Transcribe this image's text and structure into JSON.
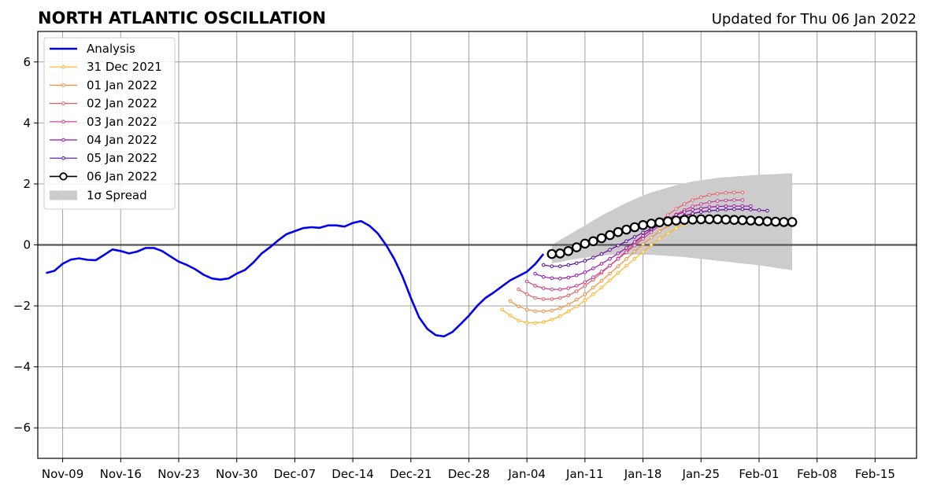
{
  "chart_data": {
    "type": "line",
    "title": "NORTH ATLANTIC OSCILLATION",
    "subtitle": "Updated for Thu 06 Jan 2022",
    "xlabel": "",
    "ylabel": "",
    "x_range": [
      "2021-11-06",
      "2022-02-20"
    ],
    "ylim": [
      -7,
      7
    ],
    "yticks": [
      -6,
      -4,
      -2,
      0,
      2,
      4,
      6
    ],
    "yticks_display": [
      "−6",
      "−4",
      "−2",
      "0",
      "2",
      "4",
      "6"
    ],
    "xticks": [
      {
        "date": "2021-11-09",
        "label": "Nov-09"
      },
      {
        "date": "2021-11-16",
        "label": "Nov-16"
      },
      {
        "date": "2021-11-23",
        "label": "Nov-23"
      },
      {
        "date": "2021-11-30",
        "label": "Nov-30"
      },
      {
        "date": "2021-12-07",
        "label": "Dec-07"
      },
      {
        "date": "2021-12-14",
        "label": "Dec-14"
      },
      {
        "date": "2021-12-21",
        "label": "Dec-21"
      },
      {
        "date": "2021-12-28",
        "label": "Dec-28"
      },
      {
        "date": "2022-01-04",
        "label": "Jan-04"
      },
      {
        "date": "2022-01-11",
        "label": "Jan-11"
      },
      {
        "date": "2022-01-18",
        "label": "Jan-18"
      },
      {
        "date": "2022-01-25",
        "label": "Jan-25"
      },
      {
        "date": "2022-02-01",
        "label": "Feb-01"
      },
      {
        "date": "2022-02-08",
        "label": "Feb-08"
      },
      {
        "date": "2022-02-15",
        "label": "Feb-15"
      }
    ],
    "grid": true,
    "zero_line": true,
    "legend_position": "top-left",
    "analysis": {
      "name": "Analysis",
      "color": "#0000ee",
      "start_date": "2021-11-07",
      "values": [
        -0.92,
        -0.85,
        -0.62,
        -0.48,
        -0.44,
        -0.49,
        -0.5,
        -0.33,
        -0.15,
        -0.2,
        -0.28,
        -0.22,
        -0.1,
        -0.1,
        -0.2,
        -0.38,
        -0.55,
        -0.66,
        -0.8,
        -0.98,
        -1.1,
        -1.14,
        -1.1,
        -0.94,
        -0.82,
        -0.58,
        -0.28,
        -0.08,
        0.15,
        0.35,
        0.45,
        0.55,
        0.58,
        0.56,
        0.64,
        0.64,
        0.6,
        0.72,
        0.78,
        0.63,
        0.38,
        0.0,
        -0.46,
        -1.04,
        -1.74,
        -2.38,
        -2.76,
        -2.96,
        -3.0,
        -2.86,
        -2.6,
        -2.32,
        -2.0,
        -1.74,
        -1.56,
        -1.36,
        -1.16,
        -1.02,
        -0.88,
        -0.63,
        -0.3
      ]
    },
    "forecasts": [
      {
        "name": "31 Dec 2021",
        "color": "#ffb41e",
        "start_date": "2022-01-01",
        "values": [
          -2.12,
          -2.32,
          -2.48,
          -2.55,
          -2.56,
          -2.53,
          -2.45,
          -2.34,
          -2.18,
          -2.02,
          -1.82,
          -1.62,
          -1.4,
          -1.16,
          -0.92,
          -0.68,
          -0.46,
          -0.22,
          0.0,
          0.2,
          0.38,
          0.55,
          0.7,
          0.82
        ]
      },
      {
        "name": "01 Jan 2022",
        "color": "#f08c3c",
        "start_date": "2022-01-02",
        "values": [
          -1.84,
          -2.02,
          -2.12,
          -2.17,
          -2.18,
          -2.15,
          -2.08,
          -1.96,
          -1.8,
          -1.62,
          -1.4,
          -1.18,
          -0.94,
          -0.7,
          -0.46,
          -0.22,
          0.02,
          0.24,
          0.44,
          0.62,
          0.78,
          0.92,
          1.02,
          1.1
        ]
      },
      {
        "name": "02 Jan 2022",
        "color": "#e65a64",
        "start_date": "2022-01-03",
        "values": [
          -1.46,
          -1.62,
          -1.74,
          -1.78,
          -1.78,
          -1.74,
          -1.66,
          -1.52,
          -1.34,
          -1.14,
          -0.92,
          -0.68,
          -0.44,
          -0.2,
          0.04,
          0.28,
          0.52,
          0.76,
          0.98,
          1.18,
          1.34,
          1.47,
          1.56,
          1.64,
          1.68,
          1.71,
          1.72,
          1.72
        ]
      },
      {
        "name": "03 Jan 2022",
        "color": "#c83c8c",
        "start_date": "2022-01-04",
        "values": [
          -1.2,
          -1.34,
          -1.42,
          -1.46,
          -1.46,
          -1.42,
          -1.34,
          -1.22,
          -1.06,
          -0.88,
          -0.68,
          -0.46,
          -0.24,
          -0.02,
          0.2,
          0.42,
          0.64,
          0.84,
          1.0,
          1.14,
          1.26,
          1.34,
          1.4,
          1.44,
          1.46,
          1.47,
          1.47
        ]
      },
      {
        "name": "04 Jan 2022",
        "color": "#9614aa",
        "start_date": "2022-01-05",
        "values": [
          -0.95,
          -1.05,
          -1.09,
          -1.1,
          -1.07,
          -1.0,
          -0.9,
          -0.77,
          -0.62,
          -0.46,
          -0.28,
          -0.1,
          0.1,
          0.3,
          0.5,
          0.68,
          0.84,
          0.98,
          1.08,
          1.15,
          1.2,
          1.24,
          1.26,
          1.27,
          1.27,
          1.27,
          1.27
        ]
      },
      {
        "name": "05 Jan 2022",
        "color": "#5a0aa0",
        "start_date": "2022-01-06",
        "values": [
          -0.66,
          -0.7,
          -0.7,
          -0.66,
          -0.6,
          -0.52,
          -0.42,
          -0.3,
          -0.16,
          -0.02,
          0.12,
          0.26,
          0.4,
          0.54,
          0.66,
          0.78,
          0.88,
          0.96,
          1.03,
          1.08,
          1.12,
          1.14,
          1.16,
          1.17,
          1.17,
          1.16,
          1.14,
          1.12
        ]
      },
      {
        "name": "06 Jan 2022",
        "color": "#000000",
        "start_date": "2022-01-07",
        "values": [
          -0.3,
          -0.28,
          -0.2,
          -0.08,
          0.04,
          0.12,
          0.22,
          0.32,
          0.42,
          0.5,
          0.58,
          0.65,
          0.7,
          0.74,
          0.77,
          0.8,
          0.82,
          0.83,
          0.84,
          0.84,
          0.84,
          0.83,
          0.82,
          0.81,
          0.8,
          0.78,
          0.77,
          0.76,
          0.75,
          0.75
        ]
      }
    ],
    "spread": {
      "name": "1σ Spread",
      "color": "#cccccc",
      "start_date": "2022-01-07",
      "upper": [
        0.0,
        0.16,
        0.32,
        0.48,
        0.64,
        0.8,
        0.96,
        1.1,
        1.24,
        1.38,
        1.5,
        1.62,
        1.72,
        1.8,
        1.88,
        1.96,
        2.02,
        2.08,
        2.12,
        2.16,
        2.2,
        2.22,
        2.24,
        2.26,
        2.28,
        2.3,
        2.31,
        2.32,
        2.34,
        2.35
      ],
      "lower": [
        -0.6,
        -0.56,
        -0.5,
        -0.46,
        -0.42,
        -0.38,
        -0.35,
        -0.33,
        -0.32,
        -0.32,
        -0.32,
        -0.32,
        -0.33,
        -0.34,
        -0.36,
        -0.38,
        -0.4,
        -0.43,
        -0.46,
        -0.49,
        -0.52,
        -0.55,
        -0.58,
        -0.61,
        -0.64,
        -0.67,
        -0.71,
        -0.75,
        -0.79,
        -0.83
      ]
    }
  }
}
